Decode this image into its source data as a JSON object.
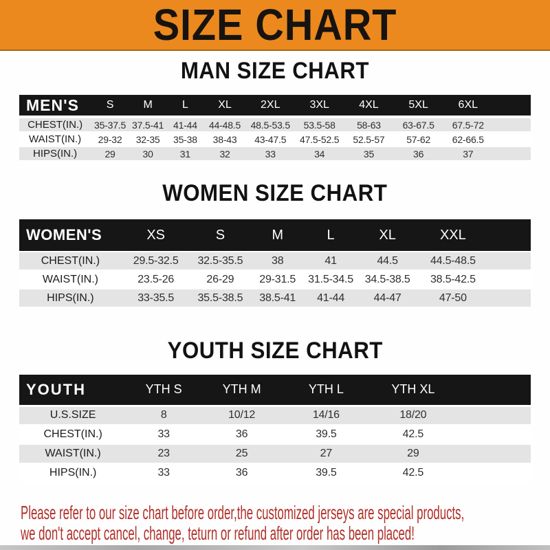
{
  "banner": {
    "title": "SIZE CHART",
    "bg_color": "#EB891E",
    "text_color": "#171310"
  },
  "colors": {
    "header_bar": "#161616",
    "row_alt_gray": "#E4E4E4",
    "row_white": "#FFFFFF",
    "disclaimer_red": "#B02F28"
  },
  "chart_data": [
    {
      "type": "table",
      "title": "MAN SIZE CHART",
      "corner_label": "MEN'S",
      "columns": [
        "S",
        "M",
        "L",
        "XL",
        "2XL",
        "3XL",
        "4XL",
        "5XL",
        "6XL"
      ],
      "rows": [
        {
          "label": "CHEST(IN.)",
          "values": [
            "35-37.5",
            "37.5-41",
            "41-44",
            "44-48.5",
            "48.5-53.5",
            "53.5-58",
            "58-63",
            "63-67.5",
            "67.5-72"
          ]
        },
        {
          "label": "WAIST(IN.)",
          "values": [
            "29-32",
            "32-35",
            "35-38",
            "38-43",
            "43-47.5",
            "47.5-52.5",
            "52.5-57",
            "57-62",
            "62-66.5"
          ]
        },
        {
          "label": "HIPS(IN.)",
          "values": [
            "29",
            "30",
            "31",
            "32",
            "33",
            "34",
            "35",
            "36",
            "37"
          ]
        }
      ]
    },
    {
      "type": "table",
      "title": "WOMEN SIZE CHART",
      "corner_label": "WOMEN'S",
      "columns": [
        "XS",
        "S",
        "M",
        "L",
        "XL",
        "XXL"
      ],
      "rows": [
        {
          "label": "CHEST(IN.)",
          "values": [
            "29.5-32.5",
            "32.5-35.5",
            "38",
            "41",
            "44.5",
            "44.5-48.5"
          ]
        },
        {
          "label": "WAIST(IN.)",
          "values": [
            "23.5-26",
            "26-29",
            "29-31.5",
            "31.5-34.5",
            "34.5-38.5",
            "38.5-42.5"
          ]
        },
        {
          "label": "HIPS(IN.)",
          "values": [
            "33-35.5",
            "35.5-38.5",
            "38.5-41",
            "41-44",
            "44-47",
            "47-50"
          ]
        }
      ]
    },
    {
      "type": "table",
      "title": "YOUTH SIZE CHART",
      "corner_label": "YOUTH",
      "columns": [
        "YTH S",
        "YTH M",
        "YTH L",
        "YTH XL"
      ],
      "rows": [
        {
          "label": "U.S.SIZE",
          "values": [
            "8",
            "10/12",
            "14/16",
            "18/20"
          ]
        },
        {
          "label": "CHEST(IN.)",
          "values": [
            "33",
            "36",
            "39.5",
            "42.5"
          ]
        },
        {
          "label": "WAIST(IN.)",
          "values": [
            "23",
            "25",
            "27",
            "29"
          ]
        },
        {
          "label": "HIPS(IN.)",
          "values": [
            "33",
            "36",
            "39.5",
            "42.5"
          ]
        }
      ]
    }
  ],
  "disclaimer": {
    "line1": "Please refer to our size chart before order,the customized jerseys are special products,",
    "line2": "we don't accept cancel, change, teturn or refund after order has been placed!"
  }
}
